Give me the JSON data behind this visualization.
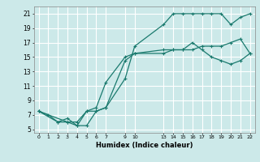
{
  "xlabel": "Humidex (Indice chaleur)",
  "bg_color": "#cce9e9",
  "grid_color": "#ffffff",
  "line_color": "#1a7a6e",
  "xlim": [
    -0.5,
    22.5
  ],
  "ylim": [
    4.5,
    22.0
  ],
  "xticks": [
    0,
    1,
    2,
    3,
    4,
    5,
    6,
    7,
    9,
    10,
    13,
    14,
    15,
    16,
    17,
    18,
    19,
    20,
    21,
    22
  ],
  "yticks": [
    5,
    7,
    9,
    11,
    13,
    15,
    17,
    19,
    21
  ],
  "curve1_x": [
    0,
    1,
    2,
    3,
    4,
    5,
    6,
    7,
    9,
    10,
    13,
    14,
    15,
    16,
    17,
    18,
    19,
    20,
    21,
    22
  ],
  "curve1_y": [
    7.5,
    7.0,
    6.0,
    6.0,
    5.5,
    5.5,
    7.5,
    8.0,
    12.0,
    16.5,
    19.5,
    21.0,
    21.0,
    21.0,
    21.0,
    21.0,
    21.0,
    19.5,
    20.5,
    21.0
  ],
  "curve2_x": [
    0,
    2,
    3,
    4,
    5,
    6,
    7,
    9,
    10,
    13,
    14,
    15,
    16,
    17,
    18,
    19,
    20,
    21,
    22
  ],
  "curve2_y": [
    7.5,
    6.0,
    6.5,
    5.5,
    7.5,
    8.0,
    11.5,
    15.0,
    15.5,
    15.5,
    16.0,
    16.0,
    16.0,
    16.5,
    16.5,
    16.5,
    17.0,
    17.5,
    15.5
  ],
  "curve3_x": [
    0,
    3,
    4,
    5,
    6,
    7,
    9,
    10,
    13,
    14,
    15,
    16,
    17,
    18,
    19,
    20,
    21,
    22
  ],
  "curve3_y": [
    7.5,
    6.0,
    6.0,
    7.5,
    7.5,
    8.0,
    14.5,
    15.5,
    16.0,
    16.0,
    16.0,
    17.0,
    16.0,
    15.0,
    14.5,
    14.0,
    14.5,
    15.5
  ]
}
